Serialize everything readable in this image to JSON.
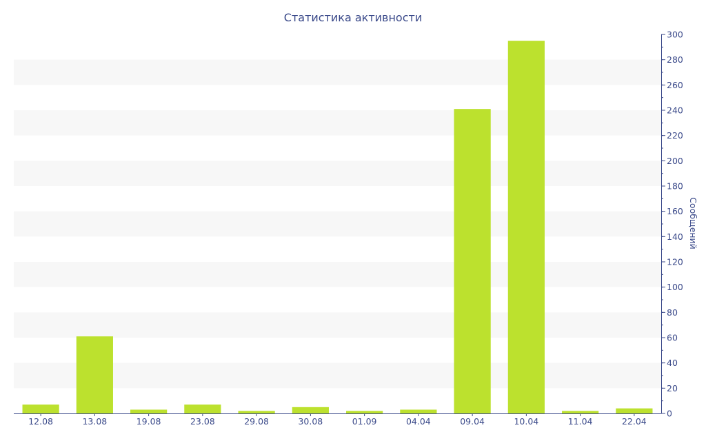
{
  "chart_data": {
    "type": "bar",
    "title": "Статистика активности",
    "ylabel": "Сообщений",
    "xlabel": "",
    "categories": [
      "12.08",
      "13.08",
      "19.08",
      "23.08",
      "29.08",
      "30.08",
      "01.09",
      "04.04",
      "09.04",
      "10.04",
      "11.04",
      "22.04"
    ],
    "values": [
      7,
      61,
      3,
      7,
      2,
      5,
      2,
      3,
      241,
      295,
      2,
      4
    ],
    "ylim": [
      0,
      300
    ],
    "yticks": [
      0,
      20,
      40,
      60,
      80,
      100,
      120,
      140,
      160,
      180,
      200,
      220,
      240,
      260,
      280,
      300
    ],
    "yaxis_side": "right",
    "grid": "alternating horizontal bands",
    "legend": "none",
    "colors": {
      "bar": "#bce12e",
      "band": "#f7f7f7",
      "text": "#3b4a8a",
      "axis": "#3b4a8a"
    }
  }
}
